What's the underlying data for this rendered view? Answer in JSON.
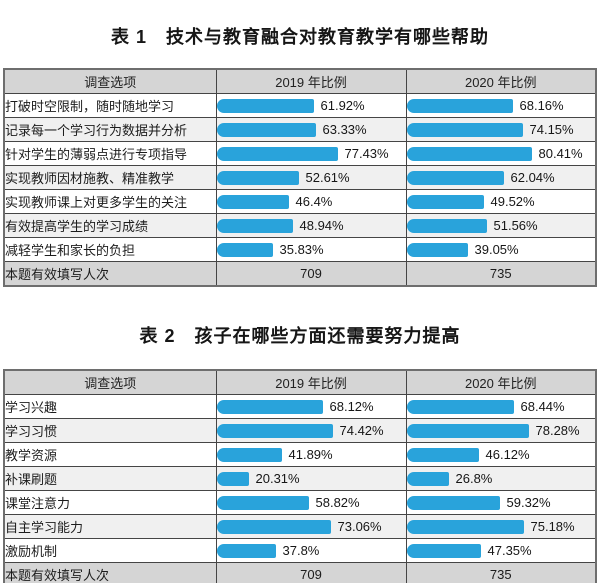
{
  "page": {
    "bar_color": "#29A3DB",
    "header_bg": "#d5d5d5"
  },
  "tables": [
    {
      "title": "表 1　技术与教育融合对教育教学有哪些帮助",
      "headers": [
        "调查选项",
        "2019 年比例",
        "2020 年比例"
      ],
      "rows": [
        {
          "label": "打破时空限制，随时随地学习",
          "y2019": {
            "pct": 61.92,
            "text": "61.92%"
          },
          "y2020": {
            "pct": 68.16,
            "text": "68.16%"
          }
        },
        {
          "label": "记录每一个学习行为数据并分析",
          "y2019": {
            "pct": 63.33,
            "text": "63.33%"
          },
          "y2020": {
            "pct": 74.15,
            "text": "74.15%"
          }
        },
        {
          "label": "针对学生的薄弱点进行专项指导",
          "y2019": {
            "pct": 77.43,
            "text": "77.43%"
          },
          "y2020": {
            "pct": 80.41,
            "text": "80.41%"
          }
        },
        {
          "label": "实现教师因材施教、精准教学",
          "y2019": {
            "pct": 52.61,
            "text": "52.61%"
          },
          "y2020": {
            "pct": 62.04,
            "text": "62.04%"
          }
        },
        {
          "label": "实现教师课上对更多学生的关注",
          "y2019": {
            "pct": 46.4,
            "text": "46.4%"
          },
          "y2020": {
            "pct": 49.52,
            "text": "49.52%"
          }
        },
        {
          "label": "有效提高学生的学习成绩",
          "y2019": {
            "pct": 48.94,
            "text": "48.94%"
          },
          "y2020": {
            "pct": 51.56,
            "text": "51.56%"
          }
        },
        {
          "label": "减轻学生和家长的负担",
          "y2019": {
            "pct": 35.83,
            "text": "35.83%"
          },
          "y2020": {
            "pct": 39.05,
            "text": "39.05%"
          }
        }
      ],
      "footer": {
        "label": "本题有效填写人次",
        "y2019": "709",
        "y2020": "735"
      }
    },
    {
      "title": "表 2　孩子在哪些方面还需要努力提高",
      "headers": [
        "调查选项",
        "2019 年比例",
        "2020 年比例"
      ],
      "rows": [
        {
          "label": "学习兴趣",
          "y2019": {
            "pct": 68.12,
            "text": "68.12%"
          },
          "y2020": {
            "pct": 68.44,
            "text": "68.44%"
          }
        },
        {
          "label": "学习习惯",
          "y2019": {
            "pct": 74.42,
            "text": "74.42%"
          },
          "y2020": {
            "pct": 78.28,
            "text": "78.28%"
          }
        },
        {
          "label": "教学资源",
          "y2019": {
            "pct": 41.89,
            "text": "41.89%"
          },
          "y2020": {
            "pct": 46.12,
            "text": "46.12%"
          }
        },
        {
          "label": "补课刷题",
          "y2019": {
            "pct": 20.31,
            "text": "20.31%"
          },
          "y2020": {
            "pct": 26.8,
            "text": "26.8%"
          }
        },
        {
          "label": "课堂注意力",
          "y2019": {
            "pct": 58.82,
            "text": "58.82%"
          },
          "y2020": {
            "pct": 59.32,
            "text": "59.32%"
          }
        },
        {
          "label": "自主学习能力",
          "y2019": {
            "pct": 73.06,
            "text": "73.06%"
          },
          "y2020": {
            "pct": 75.18,
            "text": "75.18%"
          }
        },
        {
          "label": "激励机制",
          "y2019": {
            "pct": 37.8,
            "text": "37.8%"
          },
          "y2020": {
            "pct": 47.35,
            "text": "47.35%"
          }
        }
      ],
      "footer": {
        "label": "本题有效填写人次",
        "y2019": "709",
        "y2020": "735"
      }
    }
  ],
  "chart_data": [
    {
      "type": "bar",
      "title": "表 1　技术与教育融合对教育教学有哪些帮助",
      "categories": [
        "打破时空限制，随时随地学习",
        "记录每一个学习行为数据并分析",
        "针对学生的薄弱点进行专项指导",
        "实现教师因材施教、精准教学",
        "实现教师课上对更多学生的关注",
        "有效提高学生的学习成绩",
        "减轻学生和家长的负担"
      ],
      "series": [
        {
          "name": "2019 年比例",
          "values": [
            61.92,
            63.33,
            77.43,
            52.61,
            46.4,
            48.94,
            35.83
          ]
        },
        {
          "name": "2020 年比例",
          "values": [
            68.16,
            74.15,
            80.41,
            62.04,
            49.52,
            51.56,
            39.05
          ]
        }
      ],
      "valid_responses": {
        "2019 年比例": 709,
        "2020 年比例": 735
      },
      "unit": "%",
      "xlim": [
        0,
        100
      ],
      "orientation": "horizontal",
      "legend_position": "column-headers",
      "grid": false
    },
    {
      "type": "bar",
      "title": "表 2　孩子在哪些方面还需要努力提高",
      "categories": [
        "学习兴趣",
        "学习习惯",
        "教学资源",
        "补课刷题",
        "课堂注意力",
        "自主学习能力",
        "激励机制"
      ],
      "series": [
        {
          "name": "2019 年比例",
          "values": [
            68.12,
            74.42,
            41.89,
            20.31,
            58.82,
            73.06,
            37.8
          ]
        },
        {
          "name": "2020 年比例",
          "values": [
            68.44,
            78.28,
            46.12,
            26.8,
            59.32,
            75.18,
            47.35
          ]
        }
      ],
      "valid_responses": {
        "2019 年比例": 709,
        "2020 年比例": 735
      },
      "unit": "%",
      "xlim": [
        0,
        100
      ],
      "orientation": "horizontal",
      "legend_position": "column-headers",
      "grid": false
    }
  ]
}
